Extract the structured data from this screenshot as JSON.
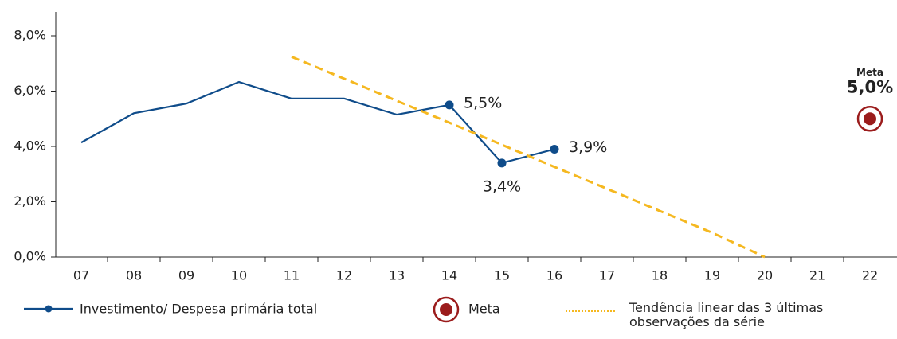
{
  "chart_data": {
    "type": "line",
    "categories": [
      "07",
      "08",
      "09",
      "10",
      "11",
      "12",
      "13",
      "14",
      "15",
      "16",
      "17",
      "18",
      "19",
      "20",
      "21",
      "22"
    ],
    "ylim": [
      0,
      8
    ],
    "yticks": [
      {
        "value": 0,
        "label": "0,0%"
      },
      {
        "value": 2,
        "label": "2,0%"
      },
      {
        "value": 4,
        "label": "4,0%"
      },
      {
        "value": 6,
        "label": "6,0%"
      },
      {
        "value": 8,
        "label": "8,0%"
      }
    ],
    "series": [
      {
        "name": "Investimento/ Despesa primária total",
        "color": "#0f4c8a",
        "values": [
          4.14,
          5.2,
          5.55,
          6.33,
          5.73,
          5.73,
          5.15,
          5.5,
          3.4,
          3.9,
          null,
          null,
          null,
          null,
          null,
          null
        ],
        "value_labels": [
          null,
          null,
          null,
          null,
          null,
          null,
          null,
          "5,5%",
          "3,4%",
          "3,9%",
          null,
          null,
          null,
          null,
          null,
          null
        ]
      },
      {
        "name": "Meta",
        "color": "#9b1c1c",
        "annotation": "Meta",
        "values": [
          null,
          null,
          null,
          null,
          null,
          null,
          null,
          null,
          null,
          null,
          null,
          null,
          null,
          null,
          null,
          5.0
        ],
        "value_labels": [
          null,
          null,
          null,
          null,
          null,
          null,
          null,
          null,
          null,
          null,
          null,
          null,
          null,
          null,
          null,
          "5,0%"
        ]
      },
      {
        "name": "Tendência linear das 3 últimas observações da série",
        "color": "#f5b820",
        "dashed": true,
        "values": [
          null,
          null,
          null,
          null,
          7.24,
          6.45,
          5.65,
          4.86,
          4.06,
          3.26,
          2.47,
          1.67,
          0.88,
          0.0,
          null,
          null
        ]
      }
    ]
  }
}
